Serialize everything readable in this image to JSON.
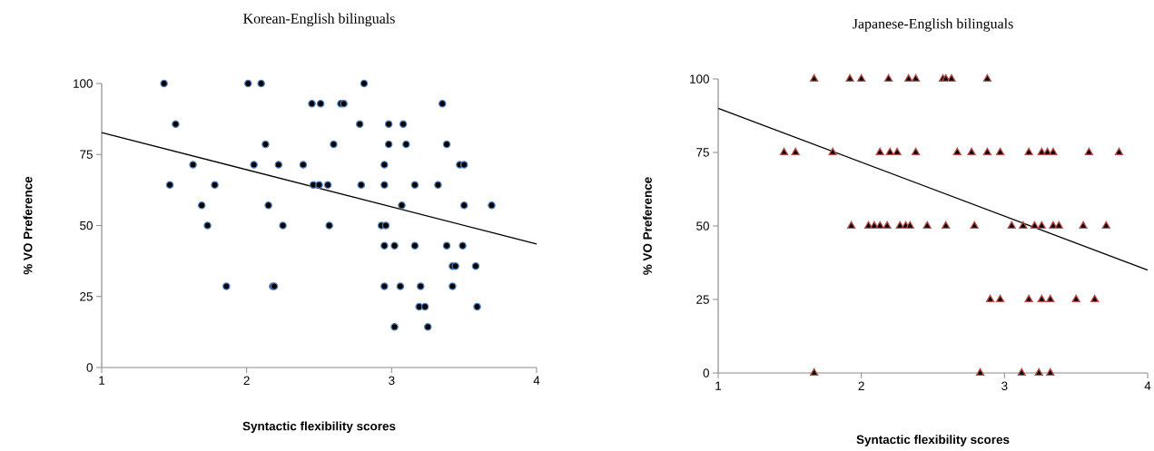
{
  "chart_data": [
    {
      "type": "scatter",
      "title": "Korean-English bilinguals",
      "xlabel": "Syntactic flexibility scores",
      "ylabel": "% VO Preference",
      "xlim": [
        1,
        4
      ],
      "ylim": [
        0,
        100
      ],
      "xticks": [
        1,
        2,
        3,
        4
      ],
      "yticks": [
        0,
        25,
        50,
        75,
        100
      ],
      "marker": "circle",
      "series": [
        {
          "color": "#4f81bd",
          "x": [
            1.43,
            2.01,
            2.1,
            2.81,
            2.45,
            2.51,
            2.65,
            2.67,
            3.35,
            1.51,
            2.78,
            2.98,
            3.08,
            2.13,
            2.6,
            2.98,
            3.1,
            3.38,
            1.63,
            2.05,
            2.22,
            2.39,
            2.95,
            3.47,
            3.5,
            1.47,
            1.78,
            2.46,
            2.5,
            2.56,
            2.79,
            2.95,
            3.16,
            3.32,
            1.69,
            2.15,
            3.07,
            3.5,
            3.69,
            1.73,
            2.25,
            2.57,
            2.93,
            2.96,
            2.95,
            3.02,
            3.16,
            3.38,
            3.49,
            3.42,
            3.44,
            3.58,
            1.86,
            2.18,
            2.19,
            2.95,
            3.06,
            3.2,
            3.42,
            3.19,
            3.23,
            3.59,
            3.02,
            3.25
          ],
          "values": [
            100,
            100,
            100,
            100,
            92.9,
            92.9,
            92.9,
            92.9,
            92.9,
            85.7,
            85.7,
            85.7,
            85.7,
            78.6,
            78.6,
            78.6,
            78.6,
            78.6,
            71.4,
            71.4,
            71.4,
            71.4,
            71.4,
            71.4,
            71.4,
            64.3,
            64.3,
            64.3,
            64.3,
            64.3,
            64.3,
            64.3,
            64.3,
            64.3,
            57.1,
            57.1,
            57.1,
            57.1,
            57.1,
            50,
            50,
            50,
            50,
            50,
            42.9,
            42.9,
            42.9,
            42.9,
            42.9,
            35.7,
            35.7,
            35.7,
            28.6,
            28.6,
            28.6,
            28.6,
            28.6,
            28.6,
            28.6,
            21.4,
            21.4,
            21.4,
            14.3,
            14.3
          ]
        },
        {
          "type": "line",
          "color": "#000000",
          "marker": "none",
          "x": [
            1,
            4
          ],
          "values": [
            82.7,
            43.5
          ]
        }
      ]
    },
    {
      "type": "scatter",
      "title": "Japanese-English bilinguals",
      "xlabel": "Syntactic flexibility scores",
      "ylabel": "% VO Preference",
      "xlim": [
        1,
        4
      ],
      "ylim": [
        0,
        100
      ],
      "xticks": [
        1,
        2,
        3,
        4
      ],
      "yticks": [
        0,
        25,
        50,
        75,
        100
      ],
      "marker": "triangle",
      "series": [
        {
          "color": "#c0504d",
          "x": [
            1.67,
            1.92,
            2.0,
            2.19,
            2.33,
            2.38,
            2.57,
            2.59,
            2.63,
            2.88,
            1.46,
            1.54,
            1.8,
            2.13,
            2.2,
            2.25,
            2.38,
            2.67,
            2.77,
            2.88,
            2.97,
            3.17,
            3.26,
            3.3,
            3.34,
            3.59,
            3.8,
            1.93,
            2.05,
            2.09,
            2.13,
            2.18,
            2.27,
            2.31,
            2.34,
            2.46,
            2.59,
            2.79,
            3.05,
            3.13,
            3.21,
            3.26,
            3.34,
            3.38,
            3.55,
            3.71,
            2.9,
            2.97,
            3.17,
            3.26,
            3.32,
            3.5,
            3.63,
            1.67,
            2.83,
            3.12,
            3.24,
            3.32
          ],
          "values": [
            100,
            100,
            100,
            100,
            100,
            100,
            100,
            100,
            100,
            100,
            75,
            75,
            75,
            75,
            75,
            75,
            75,
            75,
            75,
            75,
            75,
            75,
            75,
            75,
            75,
            75,
            75,
            50,
            50,
            50,
            50,
            50,
            50,
            50,
            50,
            50,
            50,
            50,
            50,
            50,
            50,
            50,
            50,
            50,
            50,
            50,
            25,
            25,
            25,
            25,
            25,
            25,
            25,
            0,
            0,
            0,
            0,
            0
          ]
        },
        {
          "type": "line",
          "color": "#000000",
          "marker": "none",
          "x": [
            1,
            4
          ],
          "values": [
            90,
            35
          ]
        }
      ]
    }
  ]
}
